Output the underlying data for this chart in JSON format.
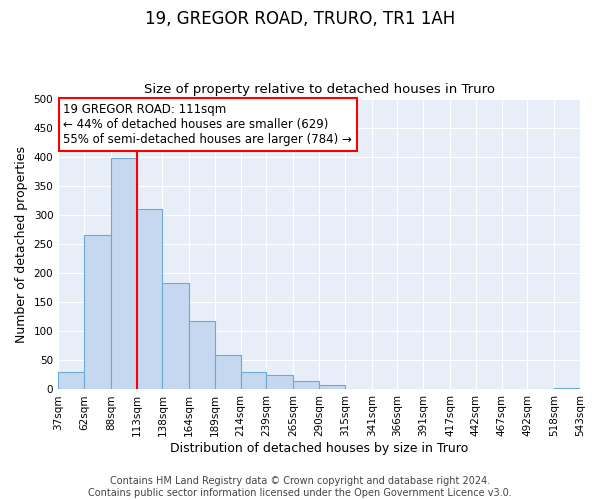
{
  "title": "19, GREGOR ROAD, TRURO, TR1 1AH",
  "subtitle": "Size of property relative to detached houses in Truro",
  "xlabel": "Distribution of detached houses by size in Truro",
  "ylabel": "Number of detached properties",
  "bin_edges": [
    37,
    62,
    88,
    113,
    138,
    164,
    189,
    214,
    239,
    265,
    290,
    315,
    341,
    366,
    391,
    417,
    442,
    467,
    492,
    518,
    543
  ],
  "counts": [
    30,
    265,
    397,
    310,
    183,
    117,
    59,
    30,
    25,
    15,
    7,
    0,
    0,
    0,
    0,
    0,
    0,
    0,
    0,
    2
  ],
  "bar_color": "#c5d8f0",
  "bar_edge_color": "#6aaad4",
  "vline_x": 113,
  "vline_color": "red",
  "annotation_line1": "19 GREGOR ROAD: 111sqm",
  "annotation_line2": "← 44% of detached houses are smaller (629)",
  "annotation_line3": "55% of semi-detached houses are larger (784) →",
  "box_edge_color": "red",
  "ylim": [
    0,
    500
  ],
  "yticks": [
    0,
    50,
    100,
    150,
    200,
    250,
    300,
    350,
    400,
    450,
    500
  ],
  "tick_labels": [
    "37sqm",
    "62sqm",
    "88sqm",
    "113sqm",
    "138sqm",
    "164sqm",
    "189sqm",
    "214sqm",
    "239sqm",
    "265sqm",
    "290sqm",
    "315sqm",
    "341sqm",
    "366sqm",
    "391sqm",
    "417sqm",
    "442sqm",
    "467sqm",
    "492sqm",
    "518sqm",
    "543sqm"
  ],
  "footnote": "Contains HM Land Registry data © Crown copyright and database right 2024.\nContains public sector information licensed under the Open Government Licence v3.0.",
  "background_color": "#e8eef8",
  "grid_color": "#ffffff",
  "title_fontsize": 12,
  "subtitle_fontsize": 9.5,
  "axis_label_fontsize": 9,
  "tick_fontsize": 7.5,
  "annotation_fontsize": 8.5,
  "footnote_fontsize": 7
}
